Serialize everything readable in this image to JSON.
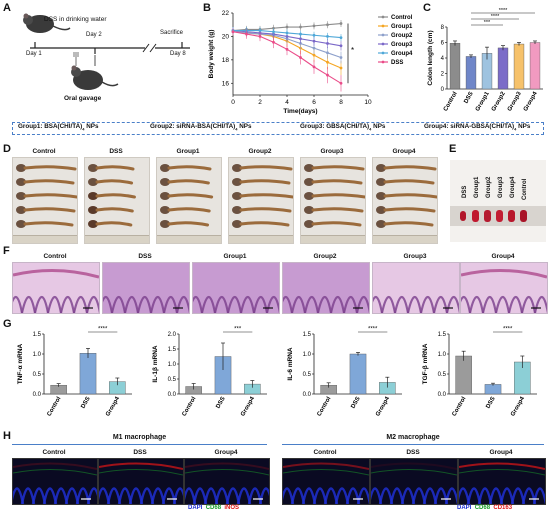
{
  "panels": {
    "A": "A",
    "B": "B",
    "C": "C",
    "D": "D",
    "E": "E",
    "F": "F",
    "G": "G",
    "H": "H"
  },
  "schematic": {
    "dss_label": "DSS in drinking water",
    "day1": "Day 1",
    "day2": "Day 2",
    "day8": "Day 8",
    "sacrifice": "Sacrifice",
    "oral_gavage": "Oral gavage"
  },
  "group_definitions": [
    {
      "name": "Group1",
      "text": "Group1: BSA(CHI/TA)",
      "sub": "4",
      "tail": " NPs"
    },
    {
      "name": "Group2",
      "text": "Group2: siRNA-BSA(CHI/TA)",
      "sub": "4",
      "tail": " NPs"
    },
    {
      "name": "Group3",
      "text": "Group3: GBSA(CHI/TA)",
      "sub": "4",
      "tail": " NPs"
    },
    {
      "name": "Group4",
      "text": "Group4: siRNA-GBSA(CHI/TA)",
      "sub": "4",
      "tail": " NPs"
    }
  ],
  "colon_photo_labels": [
    "Control",
    "DSS",
    "Group1",
    "Group2",
    "Group3",
    "Group4"
  ],
  "colon_tissue_labels": [
    "DSS",
    "Group1",
    "Group2",
    "Group3",
    "Group4",
    "Control"
  ],
  "histology_labels": [
    "Control",
    "DSS",
    "Group1",
    "Group2",
    "Group3",
    "Group4"
  ],
  "ihc": {
    "m1_title": "M1 macrophage",
    "m2_title": "M2 macrophage",
    "m1_labels": [
      "Control",
      "DSS",
      "Group4"
    ],
    "m2_labels": [
      "Control",
      "DSS",
      "Group4"
    ],
    "m1_stain": {
      "a": "DAPI",
      "b": "CD68",
      "c": "iNOS"
    },
    "m2_stain": {
      "a": "DAPI",
      "b": "CD68",
      "c": "CD163"
    },
    "stain_colors": {
      "dapi": "#1f2fd0",
      "cd68": "#1a9e2a",
      "red": "#e01515"
    }
  },
  "chart_data": [
    {
      "type": "line",
      "panel": "B",
      "xlabel": "Time(days)",
      "ylabel": "Body weight (g)",
      "xlim": [
        0,
        10
      ],
      "ylim": [
        15,
        22
      ],
      "xticks": [
        0,
        2,
        4,
        6,
        8,
        10
      ],
      "yticks": [
        16,
        18,
        20,
        22
      ],
      "x": [
        0,
        1,
        2,
        3,
        4,
        5,
        6,
        7,
        8
      ],
      "significance": "*",
      "legend_position": "right",
      "series": [
        {
          "name": "Control",
          "color": "#8c8c8c",
          "values": [
            20.5,
            20.6,
            20.6,
            20.7,
            20.8,
            20.8,
            20.9,
            21.0,
            21.1
          ],
          "err": [
            0.3,
            0.3,
            0.3,
            0.3,
            0.3,
            0.3,
            0.3,
            0.3,
            0.3
          ]
        },
        {
          "name": "Group1",
          "color": "#f5a623",
          "values": [
            20.4,
            20.3,
            20.2,
            20.0,
            19.6,
            19.0,
            18.4,
            17.8,
            17.3
          ],
          "err": [
            0.3,
            0.3,
            0.4,
            0.4,
            0.5,
            0.5,
            0.6,
            0.6,
            0.6
          ]
        },
        {
          "name": "Group2",
          "color": "#8da0cb",
          "values": [
            20.4,
            20.3,
            20.2,
            20.1,
            19.8,
            19.4,
            19.0,
            18.6,
            18.2
          ],
          "err": [
            0.3,
            0.3,
            0.3,
            0.4,
            0.4,
            0.5,
            0.5,
            0.5,
            0.5
          ]
        },
        {
          "name": "Group3",
          "color": "#7b68c8",
          "values": [
            20.5,
            20.4,
            20.3,
            20.2,
            20.0,
            19.8,
            19.6,
            19.4,
            19.2
          ],
          "err": [
            0.3,
            0.3,
            0.3,
            0.3,
            0.4,
            0.4,
            0.4,
            0.4,
            0.4
          ]
        },
        {
          "name": "Group4",
          "color": "#4fa8d8",
          "values": [
            20.5,
            20.5,
            20.5,
            20.4,
            20.3,
            20.2,
            20.1,
            20.0,
            19.9
          ],
          "err": [
            0.3,
            0.3,
            0.3,
            0.3,
            0.3,
            0.3,
            0.3,
            0.3,
            0.3
          ]
        },
        {
          "name": "DSS",
          "color": "#ea4c89",
          "values": [
            20.4,
            20.2,
            20.0,
            19.5,
            18.9,
            18.2,
            17.4,
            16.7,
            16.0
          ],
          "err": [
            0.3,
            0.4,
            0.4,
            0.5,
            0.5,
            0.6,
            0.6,
            0.7,
            0.7
          ]
        }
      ]
    },
    {
      "type": "bar",
      "panel": "C",
      "ylabel": "Colon length (cm)",
      "ylim": [
        0,
        8
      ],
      "yticks": [
        0,
        2,
        4,
        6,
        8
      ],
      "categories": [
        "Control",
        "DSS",
        "Group1",
        "Group2",
        "Group3",
        "Group4"
      ],
      "values": [
        5.9,
        4.2,
        4.6,
        5.3,
        5.8,
        6.0
      ],
      "err": [
        0.3,
        0.2,
        0.8,
        0.3,
        0.2,
        0.2
      ],
      "colors": [
        "#8c8c8c",
        "#6f86c8",
        "#9ec3e0",
        "#7b6cc8",
        "#f6c26b",
        "#f19ac0"
      ],
      "significance": [
        {
          "from": "DSS",
          "to": "Group4",
          "label": "****"
        },
        {
          "from": "DSS",
          "to": "Group3",
          "label": "****"
        },
        {
          "from": "DSS",
          "to": "Group2",
          "label": "***"
        }
      ]
    },
    {
      "type": "bar",
      "panel": "G",
      "ylabel": "TNF-α mRNA",
      "ylim": [
        0,
        1.5
      ],
      "yticks": [
        0.0,
        0.5,
        1.0,
        1.5
      ],
      "categories": [
        "Control",
        "DSS",
        "Group4"
      ],
      "values": [
        0.22,
        1.02,
        0.31
      ],
      "err": [
        0.04,
        0.12,
        0.09
      ],
      "colors": [
        "#9b9b9b",
        "#7fa7d8",
        "#8ccfd6"
      ],
      "significance": "****"
    },
    {
      "type": "bar",
      "panel": "G",
      "ylabel": "IL-1β mRNA",
      "ylim": [
        0,
        2.0
      ],
      "yticks": [
        0.0,
        0.5,
        1.0,
        1.5,
        2.0
      ],
      "categories": [
        "Control",
        "DSS",
        "Group4"
      ],
      "values": [
        0.25,
        1.25,
        0.33
      ],
      "err": [
        0.1,
        0.45,
        0.12
      ],
      "colors": [
        "#9b9b9b",
        "#7fa7d8",
        "#8ccfd6"
      ],
      "significance": "***"
    },
    {
      "type": "bar",
      "panel": "G",
      "ylabel": "IL-6 mRNA",
      "ylim": [
        0,
        1.5
      ],
      "yticks": [
        0.0,
        0.5,
        1.0,
        1.5
      ],
      "categories": [
        "Control",
        "DSS",
        "Group4"
      ],
      "values": [
        0.22,
        1.0,
        0.29
      ],
      "err": [
        0.06,
        0.04,
        0.13
      ],
      "colors": [
        "#9b9b9b",
        "#7fa7d8",
        "#8ccfd6"
      ],
      "significance": "****"
    },
    {
      "type": "bar",
      "panel": "G",
      "ylabel": "TGF-β mRNA",
      "ylim": [
        0,
        1.5
      ],
      "yticks": [
        0.0,
        0.5,
        1.0,
        1.5
      ],
      "categories": [
        "Control",
        "DSS",
        "Group4"
      ],
      "values": [
        0.95,
        0.24,
        0.8
      ],
      "err": [
        0.12,
        0.03,
        0.15
      ],
      "colors": [
        "#9b9b9b",
        "#7fa7d8",
        "#8ccfd6"
      ],
      "significance": "****"
    }
  ]
}
